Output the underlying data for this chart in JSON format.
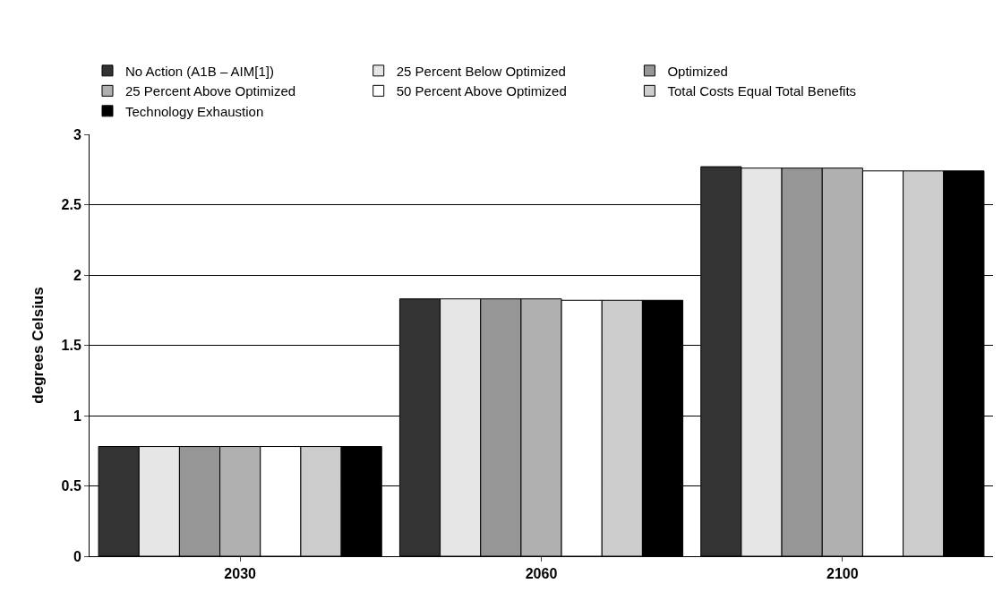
{
  "chart_data": {
    "type": "bar",
    "ylabel": "degrees Celsius",
    "categories": [
      "2030",
      "2060",
      "2100"
    ],
    "series": [
      {
        "name": "No Action (A1B – AIM[1])",
        "color": "#333333",
        "values": [
          0.78,
          1.83,
          2.77
        ]
      },
      {
        "name": "25 Percent Below Optimized",
        "color": "#e6e6e6",
        "values": [
          0.78,
          1.83,
          2.76
        ]
      },
      {
        "name": "Optimized",
        "color": "#969696",
        "values": [
          0.78,
          1.83,
          2.76
        ]
      },
      {
        "name": "25 Percent Above Optimized",
        "color": "#b0b0b0",
        "values": [
          0.78,
          1.83,
          2.76
        ]
      },
      {
        "name": "50 Percent Above Optimized",
        "color": "#ffffff",
        "values": [
          0.78,
          1.82,
          2.74
        ]
      },
      {
        "name": "Total Costs Equal Total Benefits",
        "color": "#cccccc",
        "values": [
          0.78,
          1.82,
          2.74
        ]
      },
      {
        "name": "Technology Exhaustion",
        "color": "#000000",
        "values": [
          0.78,
          1.82,
          2.74
        ]
      }
    ],
    "ylim": [
      0,
      3
    ],
    "yticks": [
      0,
      0.5,
      1,
      1.5,
      2,
      2.5,
      3
    ],
    "grid": "y",
    "legend": "top"
  }
}
